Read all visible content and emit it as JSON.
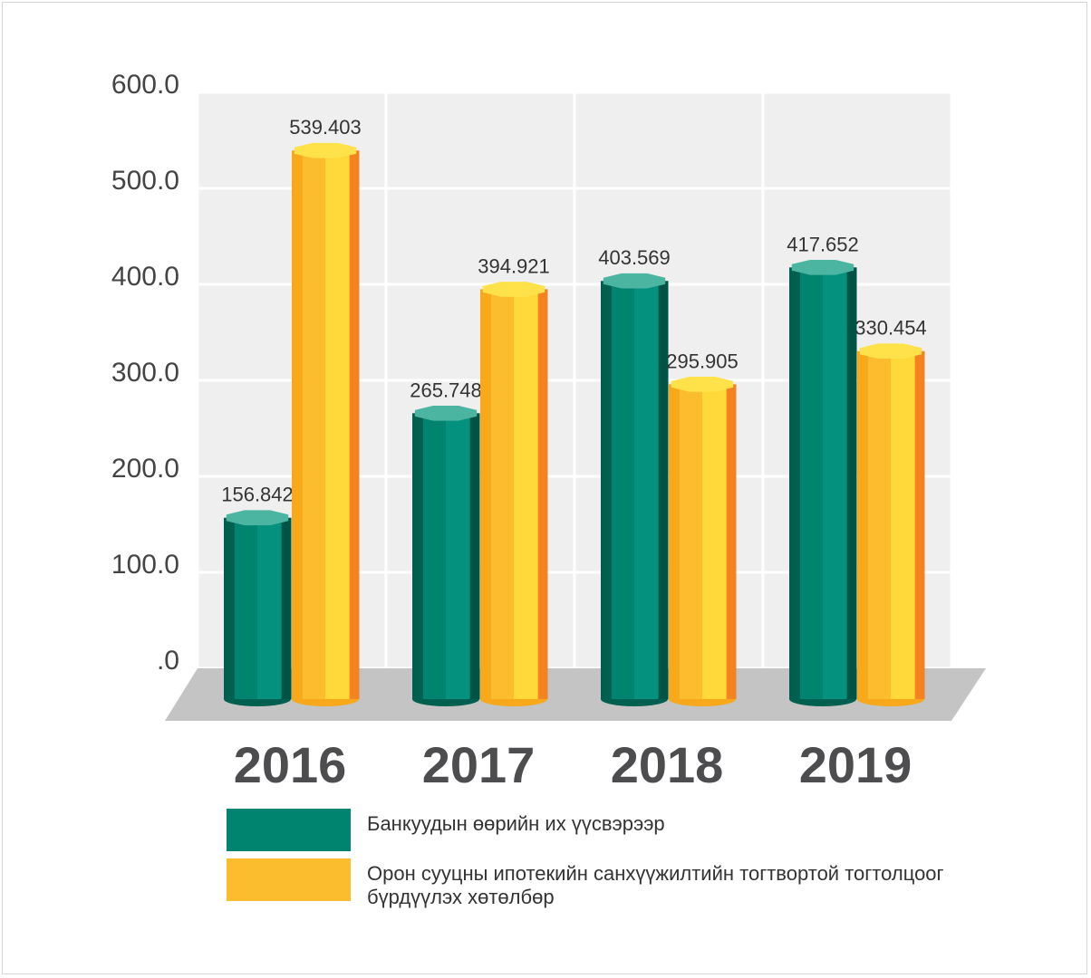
{
  "chart_data": {
    "type": "bar",
    "categories": [
      "2016",
      "2017",
      "2018",
      "2019"
    ],
    "series": [
      {
        "name": "Банкуудын өөрийн их үүсвэрээр",
        "color": "#00836f",
        "values": [
          156.842,
          265.748,
          403.569,
          417.652
        ],
        "labels": [
          "156.842",
          "265.748",
          "403.569",
          "417.652"
        ]
      },
      {
        "name": "Орон сууцны ипотекийн санхүүжилтийн тогтвортой тогтолцоог бүрдүүлэх хөтөлбөр",
        "color": "#fbbd2d",
        "values": [
          539.403,
          394.921,
          295.905,
          330.454
        ],
        "labels": [
          "539.403",
          "394.921",
          "295.905",
          "330.454"
        ]
      }
    ],
    "y_ticks": [
      "600.0",
      "500.0",
      "400.0",
      "300.0",
      "200.0",
      "100.0",
      ".0"
    ],
    "ylim": [
      0,
      600
    ],
    "grid": true,
    "legend_position": "bottom"
  },
  "legend": {
    "items": [
      {
        "label": "Банкуудын өөрийн их үүсвэрээр",
        "color": "#00836f"
      },
      {
        "label": "Орон сууцны ипотекийн санхүүжилтийн тогтвортой тогтолцоог бүрдүүлэх хөтөлбөр",
        "color": "#fbbd2d"
      }
    ]
  }
}
